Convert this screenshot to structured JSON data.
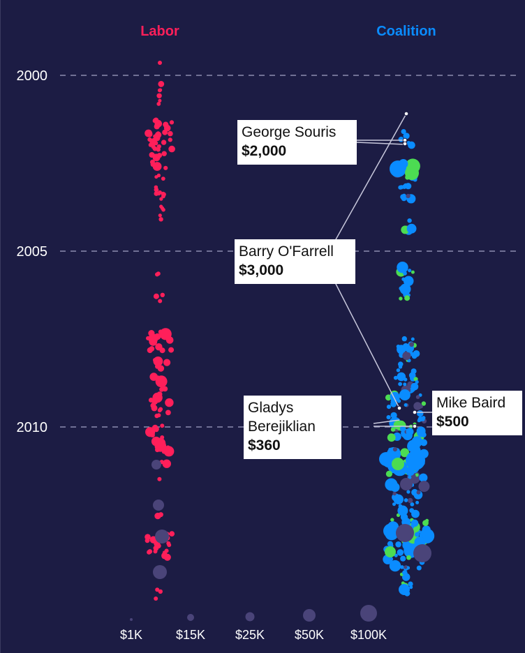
{
  "chart_data": {
    "type": "scatter",
    "columns": [
      {
        "name": "Labor",
        "color": "#ff1f5a"
      },
      {
        "name": "Coalition",
        "color": "#0a8cff"
      }
    ],
    "y_axis": {
      "ticks": [
        "2000",
        "2005",
        "2010"
      ],
      "gridlines": "dashed"
    },
    "size_legend": [
      "$1K",
      "$15K",
      "$25K",
      "$50K",
      "$100K"
    ],
    "colors": {
      "background": "#1c1c44",
      "labor": "#ff1f5a",
      "coalition_liberal": "#0a8cff",
      "coalition_national": "#4cdc52",
      "other": "#4a4479"
    },
    "annotations": [
      {
        "name": "George Souris",
        "amount": "$2,000"
      },
      {
        "name": "Barry O'Farrell",
        "amount": "$3,000"
      },
      {
        "name": "Gladys Berejiklian",
        "amount": "$360"
      },
      {
        "name": "Mike Baird",
        "amount": "$500"
      }
    ]
  }
}
